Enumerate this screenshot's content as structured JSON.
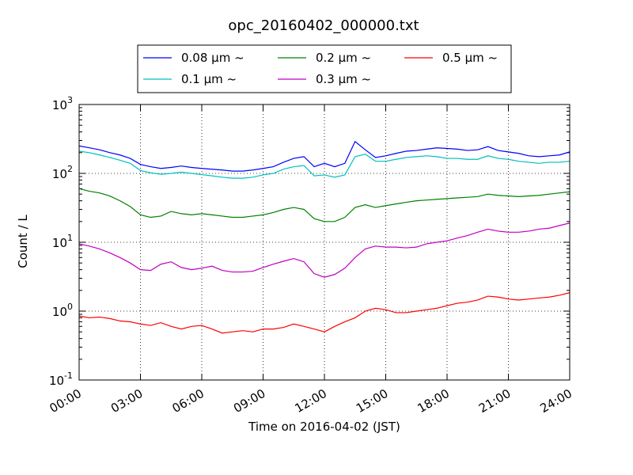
{
  "chart_data": {
    "type": "line",
    "title": "opc_20160402_000000.txt",
    "xlabel": "Time on 2016-04-02 (JST)",
    "ylabel": "Count / L",
    "xlim": [
      "2016-04-02 00:00",
      "2016-04-03 00:00"
    ],
    "x_unit": "hours",
    "x_ticks": [
      {
        "hour": 0,
        "label": "00:00"
      },
      {
        "hour": 3,
        "label": "03:00"
      },
      {
        "hour": 6,
        "label": "06:00"
      },
      {
        "hour": 9,
        "label": "09:00"
      },
      {
        "hour": 12,
        "label": "12:00"
      },
      {
        "hour": 15,
        "label": "15:00"
      },
      {
        "hour": 18,
        "label": "18:00"
      },
      {
        "hour": 21,
        "label": "21:00"
      },
      {
        "hour": 24,
        "label": "24:00"
      }
    ],
    "yscale": "log",
    "ylim": [
      0.1,
      1000
    ],
    "y_ticks": [
      {
        "value": 0.1,
        "base": "10",
        "exp": "-1"
      },
      {
        "value": 1,
        "base": "10",
        "exp": "0"
      },
      {
        "value": 10,
        "base": "10",
        "exp": "1"
      },
      {
        "value": 100,
        "base": "10",
        "exp": "2"
      },
      {
        "value": 1000,
        "base": "10",
        "exp": "3"
      }
    ],
    "grid": true,
    "legend_placement": "above plot, centered",
    "legend_columns": 3,
    "x_hours": [
      0,
      0.5,
      1,
      1.5,
      2,
      2.5,
      3,
      3.5,
      4,
      4.5,
      5,
      5.5,
      6,
      6.5,
      7,
      7.5,
      8,
      8.5,
      9,
      9.5,
      10,
      10.5,
      11,
      11.5,
      12,
      12.5,
      13,
      13.5,
      14,
      14.5,
      15,
      15.5,
      16,
      16.5,
      17,
      17.5,
      18,
      18.5,
      19,
      19.5,
      20,
      20.5,
      21,
      21.5,
      22,
      22.5,
      23,
      23.5,
      24
    ],
    "series": [
      {
        "name": "0.08 μm ~",
        "color": "#0000ff",
        "values": [
          250,
          235,
          220,
          200,
          185,
          165,
          135,
          125,
          118,
          122,
          128,
          122,
          118,
          115,
          112,
          108,
          108,
          112,
          118,
          125,
          145,
          165,
          175,
          125,
          140,
          125,
          140,
          290,
          220,
          170,
          180,
          195,
          210,
          215,
          225,
          235,
          230,
          225,
          215,
          220,
          245,
          215,
          205,
          195,
          180,
          175,
          180,
          185,
          205
        ]
      },
      {
        "name": "0.1 μm ~",
        "color": "#00bfbf",
        "values": [
          210,
          200,
          185,
          170,
          155,
          140,
          110,
          102,
          97,
          100,
          104,
          100,
          96,
          92,
          88,
          85,
          85,
          88,
          95,
          100,
          115,
          125,
          130,
          92,
          95,
          88,
          95,
          175,
          190,
          150,
          150,
          160,
          170,
          175,
          180,
          175,
          165,
          165,
          160,
          160,
          180,
          165,
          160,
          150,
          145,
          140,
          145,
          145,
          150
        ]
      },
      {
        "name": "0.2 μm ~",
        "color": "#008000",
        "values": [
          60,
          55,
          52,
          47,
          40,
          33,
          25,
          23,
          24,
          28,
          26,
          25,
          26,
          25,
          24,
          23,
          23,
          24,
          25,
          27,
          30,
          32,
          30,
          22,
          20,
          20,
          23,
          32,
          35,
          32,
          34,
          36,
          38,
          40,
          41,
          42,
          43,
          44,
          45,
          46,
          50,
          48,
          47,
          46,
          47,
          48,
          50,
          52,
          54
        ]
      },
      {
        "name": "0.3 μm ~",
        "color": "#bf00bf",
        "values": [
          9.5,
          8.8,
          8.0,
          7.0,
          6.0,
          5.0,
          4.0,
          3.9,
          4.8,
          5.2,
          4.3,
          4.0,
          4.2,
          4.5,
          3.9,
          3.7,
          3.7,
          3.8,
          4.3,
          4.8,
          5.3,
          5.8,
          5.2,
          3.5,
          3.1,
          3.4,
          4.2,
          6.0,
          8.0,
          8.8,
          8.5,
          8.5,
          8.3,
          8.5,
          9.5,
          10.0,
          10.5,
          11.5,
          12.5,
          14.0,
          15.5,
          14.5,
          14.0,
          14.0,
          14.5,
          15.5,
          16.0,
          17.5,
          19.0
        ]
      },
      {
        "name": "0.5 μm ~",
        "color": "#ff0000",
        "values": [
          0.85,
          0.8,
          0.82,
          0.78,
          0.72,
          0.7,
          0.65,
          0.62,
          0.68,
          0.6,
          0.55,
          0.6,
          0.62,
          0.55,
          0.48,
          0.5,
          0.52,
          0.5,
          0.55,
          0.55,
          0.58,
          0.65,
          0.6,
          0.55,
          0.5,
          0.6,
          0.7,
          0.8,
          1.0,
          1.1,
          1.05,
          0.95,
          0.95,
          1.0,
          1.05,
          1.1,
          1.2,
          1.3,
          1.35,
          1.45,
          1.65,
          1.6,
          1.5,
          1.45,
          1.5,
          1.55,
          1.6,
          1.7,
          1.85
        ]
      }
    ]
  }
}
